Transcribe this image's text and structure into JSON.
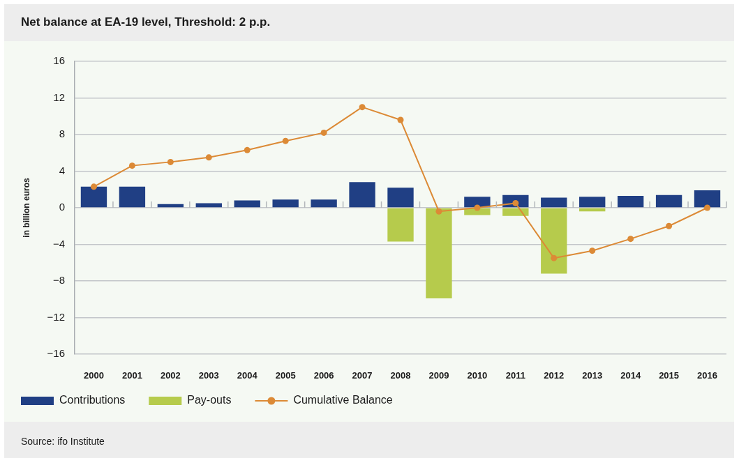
{
  "chart_data": {
    "type": "bar",
    "title": "Net balance at EA-19 level, Threshold: 2 p.p.",
    "ylabel": "in billion euros",
    "annotations": [
      "Source: ifo Institute"
    ],
    "categories": [
      "2000",
      "2001",
      "2002",
      "2003",
      "2004",
      "2005",
      "2006",
      "2007",
      "2008",
      "2009",
      "2010",
      "2011",
      "2012",
      "2013",
      "2014",
      "2015",
      "2016"
    ],
    "stacked": true,
    "series": [
      {
        "name": "Contributions",
        "color": "#203f84",
        "values": [
          2.3,
          2.3,
          0.4,
          0.5,
          0.8,
          0.9,
          0.9,
          2.8,
          2.2,
          null,
          1.2,
          1.4,
          1.1,
          1.2,
          1.3,
          1.4,
          1.9
        ]
      },
      {
        "name": "Pay-outs",
        "color": "#b6cb4c",
        "values": [
          null,
          null,
          null,
          null,
          null,
          null,
          null,
          null,
          -3.7,
          -9.9,
          -0.8,
          -0.9,
          -7.2,
          -0.4,
          null,
          null,
          null
        ]
      },
      {
        "name": "Cumulative Balance",
        "type": "line",
        "color": "#dc8a36",
        "values": [
          2.3,
          4.6,
          5.0,
          5.5,
          6.3,
          7.3,
          8.2,
          11.0,
          9.6,
          -0.4,
          0.0,
          0.5,
          -5.5,
          -4.7,
          -3.4,
          -2.0,
          0.0
        ]
      }
    ],
    "ylim": [
      -16,
      16
    ],
    "yticks": [
      {
        "value": -16,
        "label": "−16"
      },
      {
        "value": -12,
        "label": "−12"
      },
      {
        "value": -8,
        "label": "−8"
      },
      {
        "value": -4,
        "label": "−4"
      },
      0,
      4,
      8,
      12,
      16
    ],
    "grid": "y",
    "legend": "bottom left",
    "marker": "circle"
  }
}
